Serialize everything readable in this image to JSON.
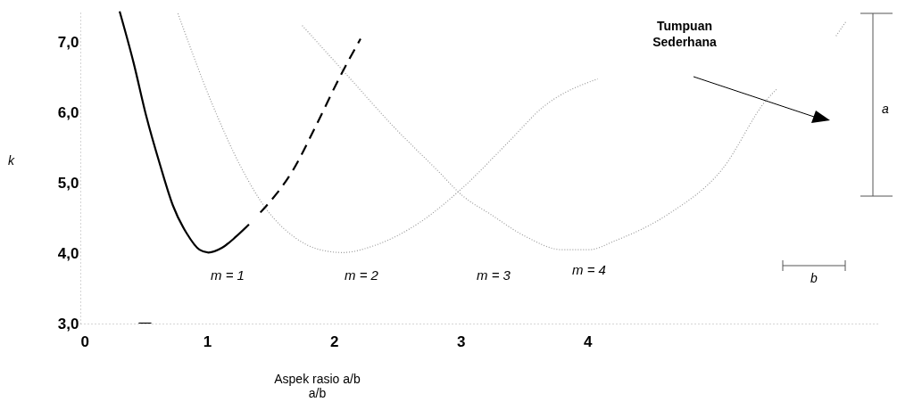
{
  "chart_data": {
    "type": "line",
    "xlabel": "Aspek rasio a/b\na/b",
    "ylabel": "k",
    "xlim": [
      0,
      6.3
    ],
    "ylim": [
      3.0,
      7.45
    ],
    "xticks": [
      0,
      1,
      2,
      3,
      4
    ],
    "yticks": [
      {
        "value": 3,
        "label": "3,0"
      },
      {
        "value": 4,
        "label": "4,0"
      },
      {
        "value": 5,
        "label": "5,0"
      },
      {
        "value": 6,
        "label": "6,0"
      },
      {
        "value": 7,
        "label": "7,0"
      }
    ],
    "grid": false,
    "marker": "none",
    "series": [
      {
        "color": "#000000",
        "line_style": "solid",
        "x": [
          0.31,
          0.42,
          0.52,
          0.63,
          0.73,
          0.84,
          0.94,
          1.01,
          1.12,
          1.23,
          1.33
        ],
        "values": [
          7.44,
          6.71,
          5.95,
          5.25,
          4.68,
          4.28,
          4.05,
          4.01,
          4.08,
          4.24,
          4.41
        ]
      },
      {
        "color": "#000000",
        "line_style": "dashed",
        "x": [
          1.42,
          1.68,
          1.86,
          2.05,
          2.21
        ],
        "values": [
          4.58,
          5.19,
          5.82,
          6.52,
          7.05
        ]
      },
      {
        "color": "#000000",
        "line_style": "solid",
        "x": [
          0.46,
          0.56
        ],
        "values": [
          3.0,
          3.0
        ]
      },
      {
        "color": "#999999",
        "line_style": "dotted",
        "x": [
          0.77,
          1.05,
          1.26,
          1.47,
          1.68,
          1.89,
          2.07,
          2.32,
          2.67,
          3.02,
          3.37,
          3.65,
          4.08
        ],
        "values": [
          7.41,
          6.08,
          5.25,
          4.62,
          4.24,
          4.05,
          4.01,
          4.11,
          4.43,
          4.94,
          5.57,
          6.08,
          6.48
        ]
      },
      {
        "color": "#999999",
        "line_style": "dotted",
        "x": [
          1.75,
          2.11,
          2.46,
          2.81,
          3.02,
          3.23,
          3.51,
          3.8,
          4.01,
          4.22,
          4.64,
          5.06,
          5.42,
          5.49
        ],
        "values": [
          7.24,
          6.52,
          5.82,
          5.19,
          4.81,
          4.56,
          4.24,
          4.05,
          4.05,
          4.18,
          4.56,
          5.19,
          6.2,
          6.33
        ]
      },
      {
        "color": "#999999",
        "line_style": "dotted",
        "x": [
          5.96,
          6.04
        ],
        "values": [
          7.09,
          7.3
        ]
      }
    ],
    "annotations": [
      "m = 1",
      "m = 2",
      "m = 3",
      "m = 4",
      "Tumpuan\nSederhana",
      "a",
      "b"
    ]
  }
}
